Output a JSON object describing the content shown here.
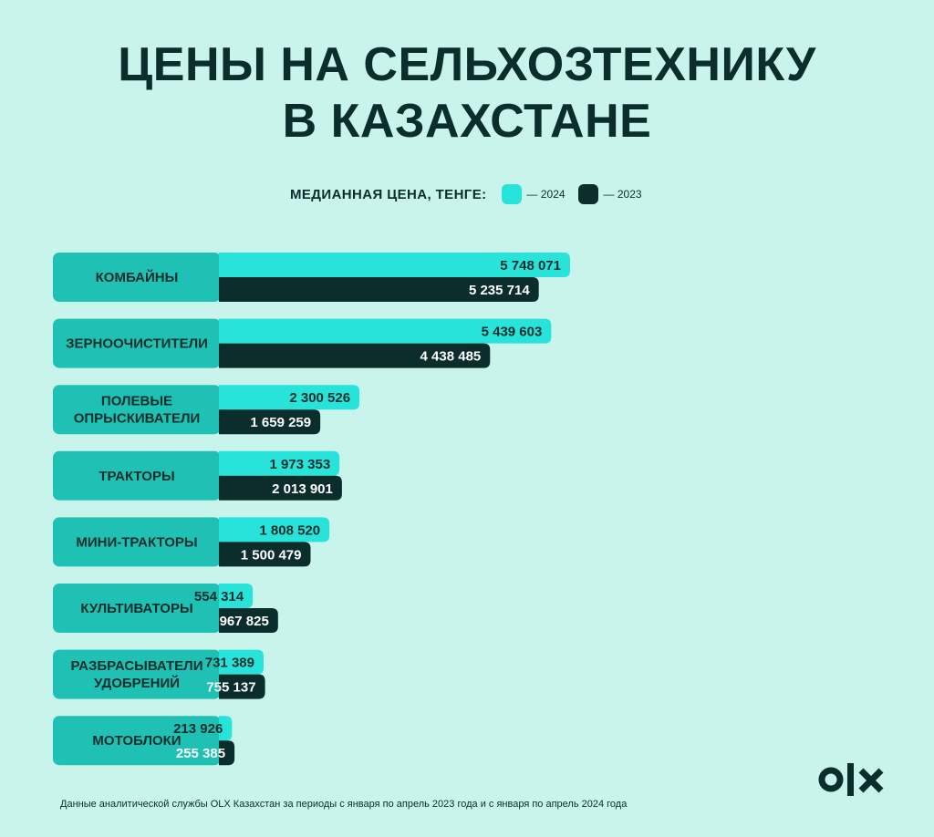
{
  "colors": {
    "background": "#c8f4ec",
    "label_box": "#1ec1b3",
    "series_2024": "#27e3da",
    "series_2023": "#0b2d2b",
    "text_dark": "#0b2d2b"
  },
  "title_lines": [
    "ЦЕНЫ НА СЕЛЬХОЗТЕХНИКУ",
    "В КАЗАХСТАНЕ"
  ],
  "legend": {
    "label": "МЕДИАННАЯ ЦЕНА, ТЕНГЕ:",
    "item_2024": "— 2024",
    "item_2023": "— 2023"
  },
  "chart_data": {
    "type": "bar",
    "orientation": "horizontal",
    "title": "ЦЕНЫ НА СЕЛЬХОЗТЕХНИКУ В КАЗАХСТАНЕ",
    "categories": [
      [
        "КОМБАЙНЫ"
      ],
      [
        "ЗЕРНООЧИСТИТЕЛИ"
      ],
      [
        "ПОЛЕВЫЕ",
        "ОПРЫСКИВАТЕЛИ"
      ],
      [
        "ТРАКТОРЫ"
      ],
      [
        "МИНИ-ТРАКТОРЫ"
      ],
      [
        "КУЛЬТИВАТОРЫ"
      ],
      [
        "РАЗБРАСЫВАТЕЛИ",
        "УДОБРЕНИЙ"
      ],
      [
        "МОТОБЛОКИ"
      ]
    ],
    "series": [
      {
        "name": "2024",
        "values": [
          5748071,
          5439603,
          2300526,
          1973353,
          1808520,
          554314,
          731389,
          213926
        ],
        "labels": [
          "5 748 071",
          "5 439 603",
          "2 300 526",
          "1 973 353",
          "1 808 520",
          "554 314",
          "731 389",
          "213 926"
        ]
      },
      {
        "name": "2023",
        "values": [
          5235714,
          4438485,
          1659259,
          2013901,
          1500479,
          967825,
          755137,
          255385
        ],
        "labels": [
          "5 235 714",
          "4 438 485",
          "1 659 259",
          "2 013 901",
          "1 500 479",
          "967 825",
          "755 137",
          "255 385"
        ]
      }
    ],
    "legend_position": "top",
    "grid": false,
    "axes_visible": false
  },
  "footnote": "Данные аналитической службы OLX Казахстан за периоды с января по апрель 2023 года и с января по апрель 2024 года",
  "logo": {
    "text": "OLX"
  }
}
